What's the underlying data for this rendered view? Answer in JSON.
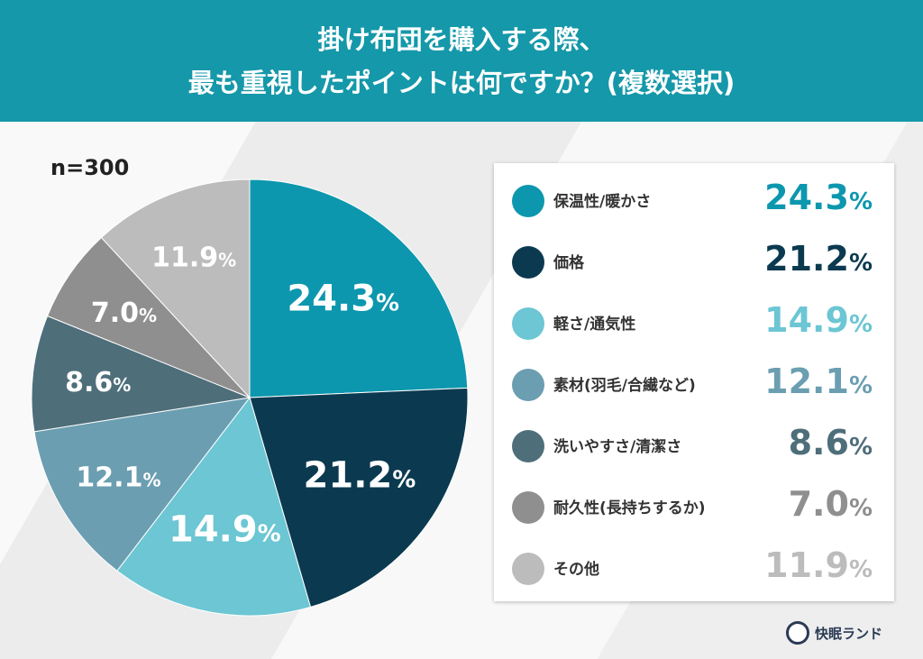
{
  "header": {
    "line1": "掛け布団を購入する際、",
    "line2": "最も重視したポイントは何ですか？(複数選択)"
  },
  "sample": "n=300",
  "chart_data": {
    "type": "pie",
    "title": "掛け布団を購入する際、最も重視したポイントは何ですか？(複数選択)",
    "start": "top",
    "direction": "clockwise",
    "legend": "right",
    "unit": "%",
    "categories": [
      "保温性/暖かさ",
      "価格",
      "軽さ/通気性",
      "素材(羽毛/合繊など)",
      "洗いやすさ/清潔さ",
      "耐久性(長持ちするか)",
      "その他"
    ],
    "values": [
      24.3,
      21.2,
      14.9,
      12.1,
      8.6,
      7.0,
      11.9
    ],
    "labels": [
      "24.3",
      "21.2",
      "14.9",
      "12.1",
      "8.6",
      "7.0",
      "11.9"
    ],
    "colors": [
      "#0c97ae",
      "#0b3a50",
      "#6cc6d3",
      "#6b9eb1",
      "#4e6e7a",
      "#8f8f8f",
      "#bcbcbc"
    ]
  },
  "logo": {
    "text": "快眠ランド"
  }
}
